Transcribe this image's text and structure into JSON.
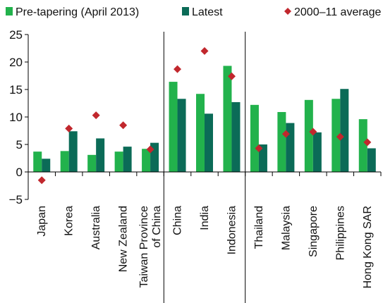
{
  "chart_data": {
    "type": "bar",
    "title": "",
    "xlabel": "",
    "ylabel": "",
    "ylim": [
      -5,
      25
    ],
    "yticks": [
      -5,
      0,
      5,
      10,
      15,
      20,
      25
    ],
    "ytick_labels": [
      "−5",
      "0",
      "5",
      "10",
      "15",
      "20",
      "25"
    ],
    "grid": false,
    "legend_position": "top",
    "categories": [
      "Japan",
      "Korea",
      "Australia",
      "New Zealand",
      "Taiwan Province of China",
      "China",
      "India",
      "Indonesia",
      "Thailand",
      "Malaysia",
      "Singapore",
      "Philippines",
      "Hong Kong SAR"
    ],
    "category_label_lines": [
      [
        "Japan"
      ],
      [
        "Korea"
      ],
      [
        "Australia"
      ],
      [
        "New Zealand"
      ],
      [
        "Taiwan Province",
        "of China"
      ],
      [
        "China"
      ],
      [
        "India"
      ],
      [
        "Indonesia"
      ],
      [
        "Thailand"
      ],
      [
        "Malaysia"
      ],
      [
        "Singapore"
      ],
      [
        "Philippines"
      ],
      [
        "Hong Kong SAR"
      ]
    ],
    "group_separators_after_index": [
      4,
      7
    ],
    "series": [
      {
        "name": "Pre-tapering (April 2013)",
        "mark": "bar",
        "color": "#22b24c",
        "values": [
          3.7,
          3.8,
          3.1,
          3.7,
          4.2,
          16.4,
          14.2,
          19.3,
          12.2,
          10.9,
          13.1,
          13.3,
          9.6
        ]
      },
      {
        "name": "Latest",
        "mark": "bar",
        "color": "#0b6b57",
        "values": [
          2.4,
          7.4,
          6.1,
          4.6,
          5.3,
          13.3,
          10.6,
          12.7,
          5.0,
          8.9,
          7.2,
          15.1,
          4.3
        ]
      },
      {
        "name": "2000–11 average",
        "mark": "diamond",
        "color": "#c1272d",
        "values": [
          -1.5,
          7.9,
          10.3,
          8.5,
          4.1,
          18.7,
          22.0,
          17.4,
          4.3,
          6.9,
          7.3,
          6.4,
          5.4
        ]
      }
    ]
  }
}
